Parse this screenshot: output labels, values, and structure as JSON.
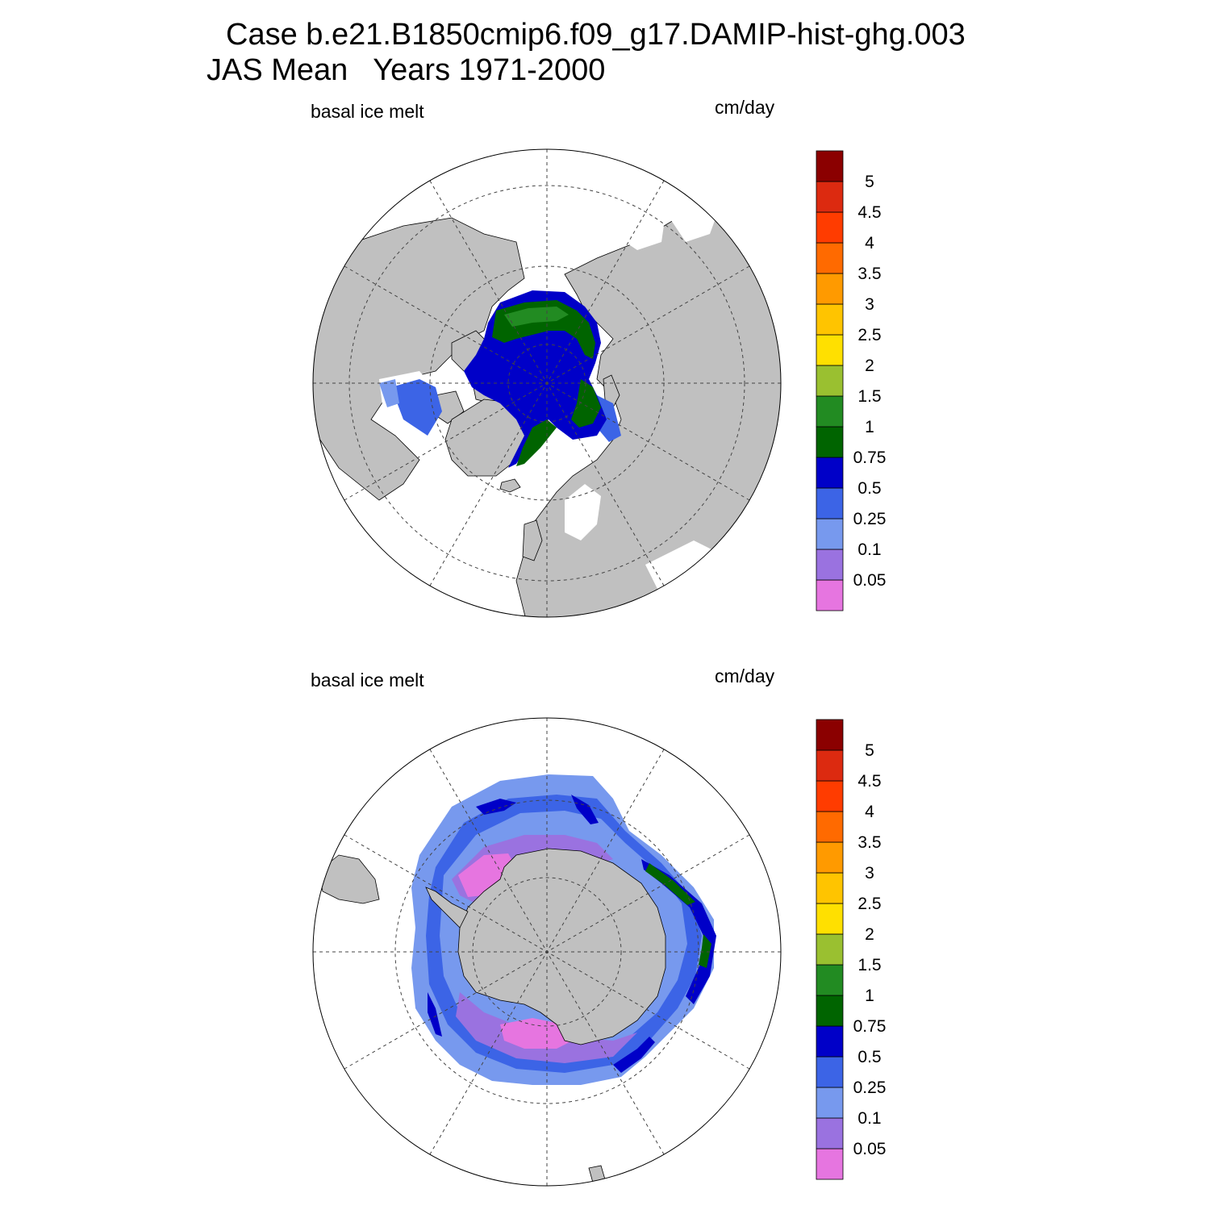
{
  "titles": {
    "line1": "Case b.e21.B1850cmip6.f09_g17.DAMIP-hist-ghg.003",
    "line2": "JAS Mean   Years 1971-2000"
  },
  "panels": [
    {
      "name": "north",
      "variable_label": "basal ice melt",
      "units_label": "cm/day"
    },
    {
      "name": "south",
      "variable_label": "basal ice melt",
      "units_label": "cm/day"
    }
  ],
  "colorbar": {
    "levels": [
      "0.05",
      "0.1",
      "0.25",
      "0.5",
      "0.75",
      "1",
      "1.5",
      "2",
      "2.5",
      "3",
      "3.5",
      "4",
      "4.5",
      "5"
    ],
    "colors": [
      "#e675e0",
      "#9a72e0",
      "#7799ee",
      "#3c64e6",
      "#0000c8",
      "#006400",
      "#228b22",
      "#9ac030",
      "#ffe000",
      "#ffc400",
      "#ff9a00",
      "#ff6a00",
      "#ff3c00",
      "#dc2a10",
      "#8b0000"
    ]
  },
  "map_colors": {
    "land": "#c0c0c0",
    "ocean": "#ffffff"
  }
}
